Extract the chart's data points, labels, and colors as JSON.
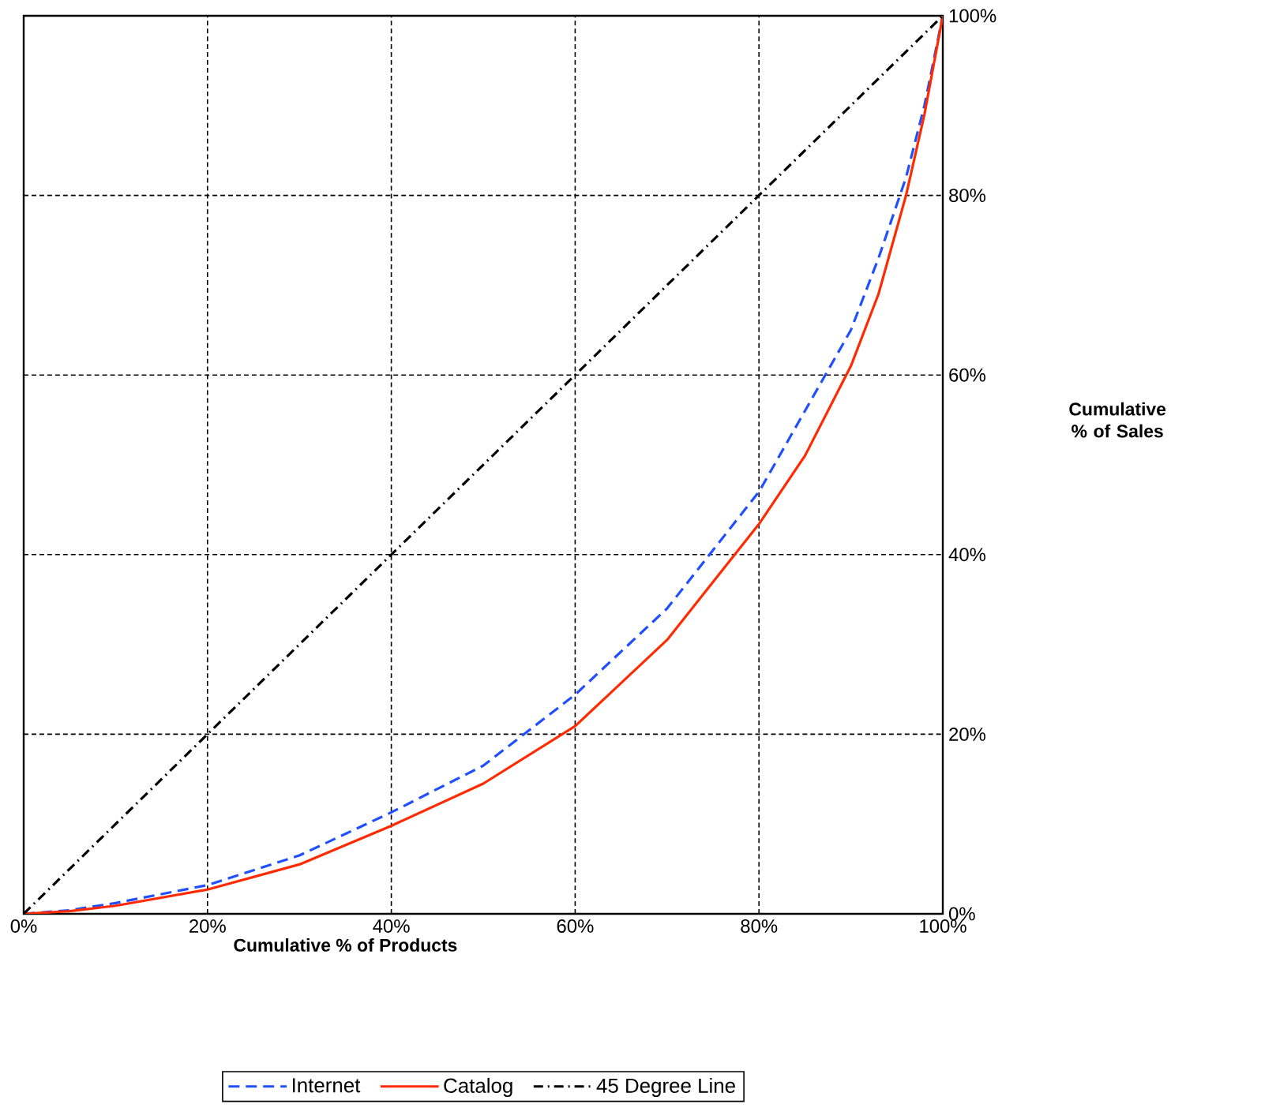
{
  "chart_data": {
    "type": "line",
    "xlabel": "Cumulative % of Products",
    "ylabel": "Cumulative % of Sales",
    "x": [
      0,
      5,
      10,
      20,
      30,
      40,
      50,
      60,
      70,
      80,
      85,
      90,
      93,
      96,
      98,
      100
    ],
    "series": [
      {
        "name": "Internet",
        "color": "#1f4fff",
        "line_style": "dashed",
        "values": [
          0,
          0.4,
          1.2,
          3.2,
          6.5,
          11.3,
          16.5,
          24.4,
          34,
          47,
          56,
          65,
          73,
          82,
          90,
          100
        ]
      },
      {
        "name": "Catalog",
        "color": "#ff2a00",
        "line_style": "solid",
        "values": [
          0,
          0.3,
          0.9,
          2.7,
          5.5,
          9.8,
          14.5,
          20.9,
          30.5,
          43.4,
          51,
          61,
          69,
          80,
          89,
          100
        ]
      },
      {
        "name": "45 Degree Line",
        "color": "#000000",
        "line_style": "dashdot",
        "x": [
          0,
          100
        ],
        "values": [
          0,
          100
        ]
      }
    ],
    "xlim": [
      0,
      100
    ],
    "ylim": [
      0,
      100
    ],
    "xticks": [
      {
        "value": 0,
        "label": "0%"
      },
      {
        "value": 20,
        "label": "20%"
      },
      {
        "value": 40,
        "label": "40%"
      },
      {
        "value": 60,
        "label": "60%"
      },
      {
        "value": 80,
        "label": "80%"
      },
      {
        "value": 100,
        "label": "100%"
      }
    ],
    "yticks": [
      {
        "value": 0,
        "label": "0%"
      },
      {
        "value": 20,
        "label": "20%"
      },
      {
        "value": 40,
        "label": "40%"
      },
      {
        "value": 60,
        "label": "60%"
      },
      {
        "value": 80,
        "label": "80%"
      },
      {
        "value": 100,
        "label": "100%"
      }
    ],
    "grid": true,
    "legend": "bottom",
    "marker": "none"
  }
}
